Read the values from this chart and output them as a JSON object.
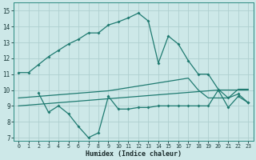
{
  "xlabel": "Humidex (Indice chaleur)",
  "bg_color": "#cde8e8",
  "grid_color": "#afd0d0",
  "line_color": "#1e7a70",
  "xlim": [
    -0.5,
    23.5
  ],
  "ylim": [
    6.8,
    15.5
  ],
  "yticks": [
    7,
    8,
    9,
    10,
    11,
    12,
    13,
    14,
    15
  ],
  "xticks": [
    0,
    1,
    2,
    3,
    4,
    5,
    6,
    7,
    8,
    9,
    10,
    11,
    12,
    13,
    14,
    15,
    16,
    17,
    18,
    19,
    20,
    21,
    22,
    23
  ],
  "line1_x": [
    0,
    1,
    2,
    3,
    4,
    5,
    6,
    7,
    8,
    9,
    10,
    11,
    12,
    13,
    14,
    15,
    16,
    17,
    18,
    19,
    20,
    21,
    22,
    23
  ],
  "line1_y": [
    11.1,
    11.1,
    11.6,
    12.1,
    12.5,
    12.9,
    13.2,
    13.6,
    13.6,
    14.1,
    14.3,
    14.55,
    14.85,
    14.35,
    11.7,
    13.4,
    12.9,
    11.85,
    11.0,
    11.0,
    10.05,
    9.5,
    9.75,
    9.2
  ],
  "line2_x": [
    0,
    1,
    2,
    3,
    4,
    5,
    6,
    7,
    8,
    9,
    10,
    11,
    12,
    13,
    14,
    15,
    16,
    17,
    18,
    19,
    20,
    21,
    22,
    23
  ],
  "line2_y": [
    9.5,
    9.55,
    9.6,
    9.65,
    9.7,
    9.75,
    9.8,
    9.85,
    9.9,
    9.95,
    10.05,
    10.15,
    10.25,
    10.35,
    10.45,
    10.55,
    10.65,
    10.75,
    10.0,
    9.5,
    9.5,
    9.5,
    10.05,
    10.05
  ],
  "line3_x": [
    0,
    1,
    2,
    3,
    4,
    5,
    6,
    7,
    8,
    9,
    10,
    11,
    12,
    13,
    14,
    15,
    16,
    17,
    18,
    19,
    20,
    21,
    22,
    23
  ],
  "line3_y": [
    9.0,
    9.05,
    9.1,
    9.15,
    9.2,
    9.25,
    9.3,
    9.35,
    9.4,
    9.45,
    9.5,
    9.55,
    9.6,
    9.65,
    9.7,
    9.75,
    9.8,
    9.85,
    9.9,
    9.95,
    10.0,
    10.0,
    10.0,
    10.0
  ],
  "line4_x": [
    2,
    3,
    4,
    5,
    6,
    7,
    8,
    9,
    10,
    11,
    12,
    13,
    14,
    15,
    16,
    17,
    18,
    19,
    20,
    21,
    22,
    23
  ],
  "line4_y": [
    9.8,
    8.6,
    9.0,
    8.5,
    7.7,
    7.0,
    7.3,
    9.6,
    8.8,
    8.8,
    8.9,
    8.9,
    9.0,
    9.0,
    9.0,
    9.0,
    9.0,
    9.0,
    10.0,
    8.9,
    9.6,
    9.2
  ]
}
